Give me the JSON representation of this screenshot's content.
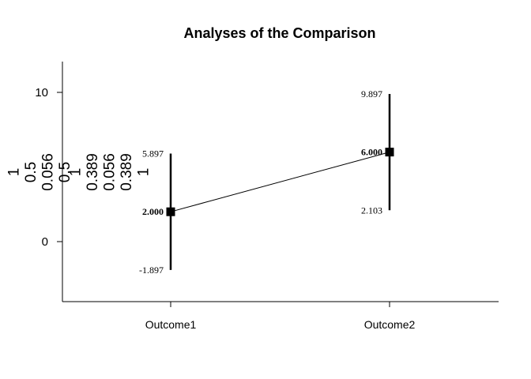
{
  "chart_data": {
    "type": "line",
    "title": "Analyses of the Comparison",
    "xlabel": "",
    "ylabel": "",
    "categories": [
      "Outcome1",
      "Outcome2"
    ],
    "ylim": [
      -4,
      12
    ],
    "yticks": [
      0,
      10
    ],
    "series": [
      {
        "values": [
          2.0,
          6.0
        ],
        "lower": [
          -1.897,
          2.103
        ],
        "upper": [
          5.897,
          9.897
        ],
        "value_labels": [
          "2.000",
          "6.000"
        ],
        "lower_labels": [
          "-1.897",
          "2.103"
        ],
        "upper_labels": [
          "5.897",
          "9.897"
        ]
      }
    ],
    "side_matrix_text": [
      [
        "1",
        "0.5",
        "0.056",
        "0.5"
      ],
      [
        "1",
        "0.389",
        "0.056",
        "0.389",
        "1"
      ]
    ],
    "grid": false,
    "legend": "none"
  }
}
